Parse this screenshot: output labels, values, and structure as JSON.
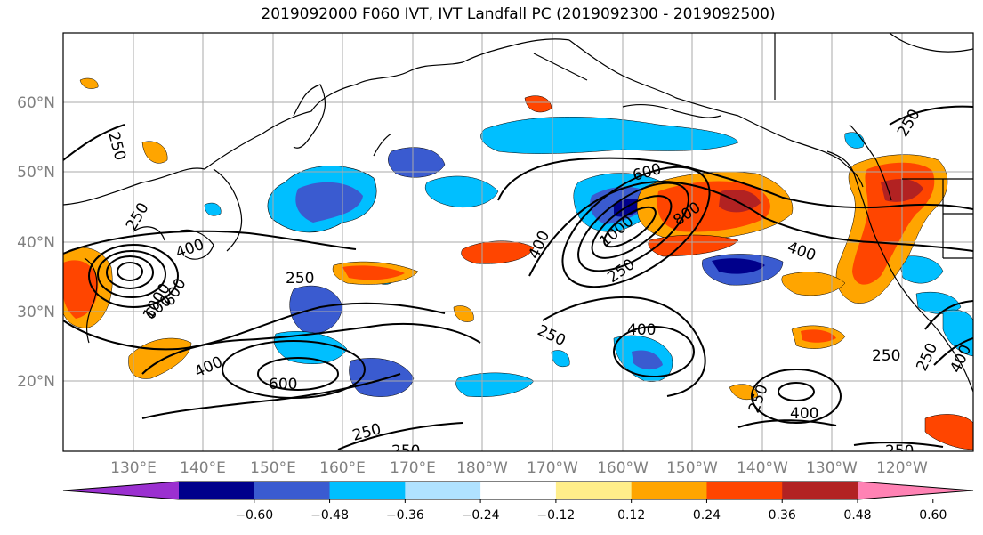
{
  "title": "2019092000 F060 IVT, IVT Landfall PC (2019092300 - 2019092500)",
  "lon_ticks": [
    "130°E",
    "140°E",
    "150°E",
    "160°E",
    "170°E",
    "180°W",
    "170°W",
    "160°W",
    "150°W",
    "140°W",
    "130°W",
    "120°W"
  ],
  "lat_ticks": [
    "60°N",
    "50°N",
    "40°N",
    "30°N",
    "20°N"
  ],
  "colorbar": {
    "colors": [
      "#9b30d0",
      "#00008b",
      "#3a5bd0",
      "#00bfff",
      "#b0e2ff",
      "#ffffff",
      "#ffee8a",
      "#ffa500",
      "#ff4500",
      "#b22222",
      "#ff82b4"
    ],
    "tick_labels": [
      "−0.60",
      "−0.48",
      "−0.36",
      "−0.24",
      "−0.12",
      "0.12",
      "0.24",
      "0.36",
      "0.48",
      "0.60"
    ]
  },
  "contour_labels": [
    "250",
    "400",
    "250",
    "600",
    "400",
    "250",
    "400",
    "600",
    "800",
    "1000",
    "250",
    "250",
    "400",
    "250",
    "600",
    "400",
    "250",
    "400",
    "250",
    "400",
    "250",
    "250",
    "600",
    "1000",
    "250",
    "250"
  ]
}
